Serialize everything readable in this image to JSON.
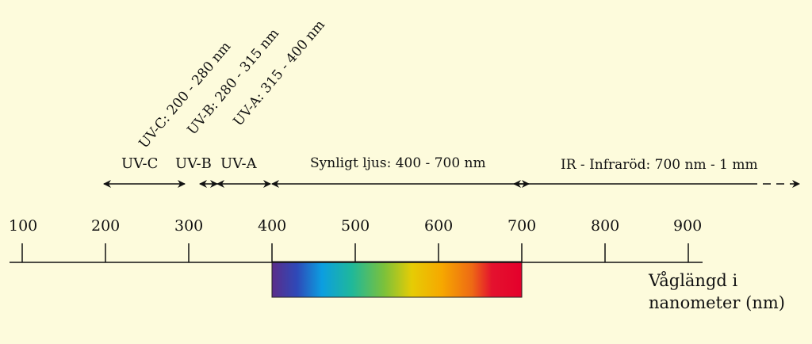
{
  "background_color": "#fdfbdc",
  "rotated_labels": [
    {
      "id": "uvc",
      "text": "UV-C: 200 - 280 nm"
    },
    {
      "id": "uvb",
      "text": "UV-B: 280 - 315 nm"
    },
    {
      "id": "uva",
      "text": "UV-A: 315 - 400 nm"
    }
  ],
  "band_labels": [
    {
      "id": "uvc",
      "text": "UV-C"
    },
    {
      "id": "uvb",
      "text": "UV-B"
    },
    {
      "id": "uva",
      "text": "UV-A"
    },
    {
      "id": "visible",
      "text": "Synligt ljus: 400 - 700 nm"
    },
    {
      "id": "ir",
      "text": "IR - Infraröd: 700 nm - 1 mm"
    }
  ],
  "axis": {
    "ticks": [
      "100",
      "200",
      "300",
      "400",
      "500",
      "600",
      "700",
      "800",
      "900"
    ],
    "caption_line1": "Våglängd i",
    "caption_line2": "nanometer (nm)"
  },
  "spectrum": {
    "range_nm": [
      400,
      700
    ],
    "colors": [
      "#5b2d8a",
      "#2e49b8",
      "#0c9ee0",
      "#1fb89a",
      "#7cc13a",
      "#e6cc05",
      "#f6a800",
      "#ee6a14",
      "#e4122e",
      "#e4002b"
    ]
  }
}
